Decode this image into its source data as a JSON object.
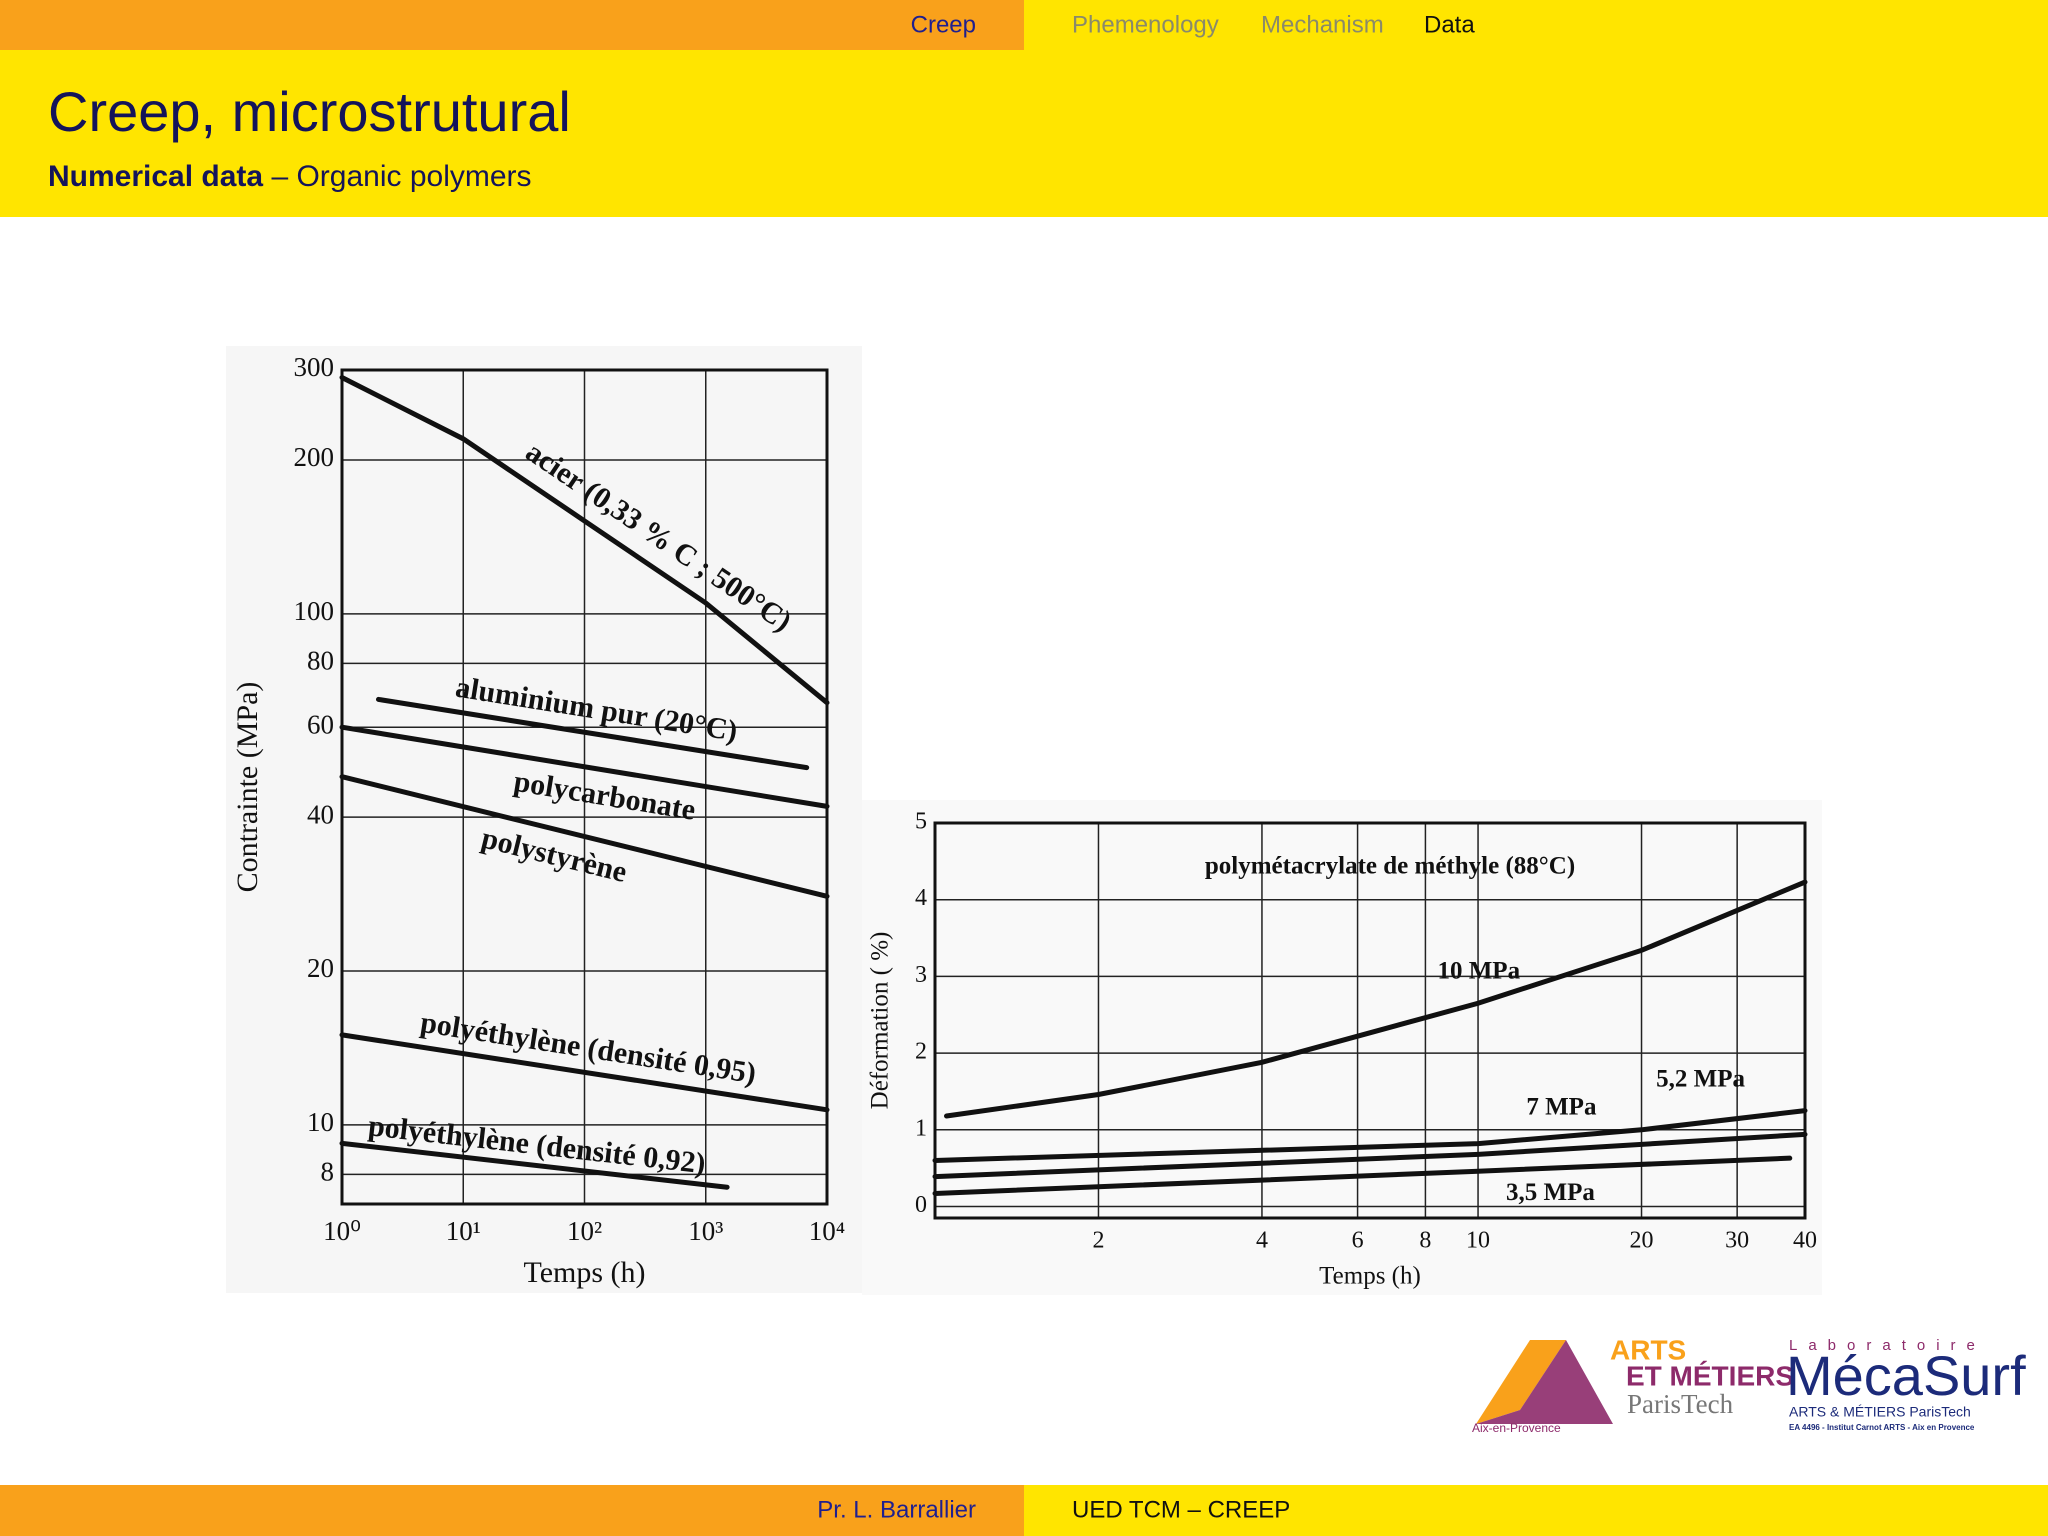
{
  "header": {
    "section": "Creep",
    "nav": [
      "Phemenology",
      "Mechanism",
      "Data"
    ],
    "title": "Creep, microstrutural",
    "subtitle_bold": "Numerical data",
    "subtitle": "– Organic polymers"
  },
  "chart_data": [
    {
      "type": "line",
      "xlabel": "Temps (h)",
      "ylabel": "Contrainte (MPa)",
      "xscale": "log",
      "yscale": "log",
      "grid": true,
      "xlim": [
        1,
        10000
      ],
      "ylim": [
        7,
        300
      ],
      "xticks": [
        {
          "value": 1,
          "label": "10⁰"
        },
        {
          "value": 10,
          "label": "10¹"
        },
        {
          "value": 100,
          "label": "10²"
        },
        {
          "value": 1000,
          "label": "10³"
        },
        {
          "value": 10000,
          "label": "10⁴"
        }
      ],
      "yticks": [
        8,
        10,
        20,
        40,
        60,
        80,
        100,
        200,
        300
      ],
      "series": [
        {
          "name": "acier (0,33 % C ; 500°C)",
          "color": "#111111",
          "x": [
            1,
            10,
            100,
            1000,
            10000
          ],
          "values": [
            290,
            220,
            152,
            105,
            67
          ]
        },
        {
          "name": "aluminium pur (20°C)",
          "color": "#111111",
          "x": [
            2,
            6800
          ],
          "values": [
            68,
            50
          ]
        },
        {
          "name": "polycarbonate",
          "color": "#111111",
          "x": [
            1,
            10000
          ],
          "values": [
            60,
            42
          ]
        },
        {
          "name": "polystyrène",
          "color": "#111111",
          "x": [
            1,
            10000
          ],
          "values": [
            48,
            28
          ]
        },
        {
          "name": "polyéthylène (densité 0,95)",
          "color": "#111111",
          "x": [
            1,
            10000
          ],
          "values": [
            15,
            10.7
          ]
        },
        {
          "name": "polyéthylène (densité 0,92)",
          "color": "#111111",
          "x": [
            1,
            1500
          ],
          "values": [
            9.2,
            7.55
          ]
        }
      ]
    },
    {
      "type": "line",
      "annotation": "polymétacrylate de méthyle (88°C)",
      "xlabel": "Temps (h)",
      "ylabel": "Déformation ( %)",
      "xscale": "log",
      "grid": true,
      "xlim": [
        1,
        40
      ],
      "ylim": [
        -0.15,
        5
      ],
      "xticks": [
        2,
        4,
        6,
        8,
        10,
        20,
        30,
        40
      ],
      "yticks": [
        0,
        1,
        2,
        3,
        4,
        5
      ],
      "series": [
        {
          "name": "10 MPa",
          "color": "#111111",
          "x": [
            1.05,
            2,
            4,
            10,
            20,
            40
          ],
          "values": [
            1.18,
            1.46,
            1.88,
            2.65,
            3.34,
            4.23
          ]
        },
        {
          "name": "7 MPa",
          "color": "#111111",
          "x": [
            1,
            10,
            20,
            40
          ],
          "values": [
            0.6,
            0.82,
            1.0,
            1.25
          ]
        },
        {
          "name": "5,2 MPa",
          "color": "#111111",
          "x": [
            1,
            10,
            40
          ],
          "values": [
            0.39,
            0.68,
            0.94
          ]
        },
        {
          "name": "3,5 MPa",
          "color": "#111111",
          "x": [
            1,
            10,
            37.5
          ],
          "values": [
            0.17,
            0.46,
            0.63
          ]
        }
      ]
    }
  ],
  "logos": {
    "arts": "ARTS",
    "metiers": "ET MÉTIERS",
    "paristech": "ParisTech",
    "city": "Aix-en-Provence",
    "lab": "Laboratoire",
    "mecasurf": "MécaSurf",
    "lab_sub": "ARTS & MÉTIERS ParisTech",
    "lab_ea": "EA 4496 - Institut Carnot ARTS - Aix en Provence"
  },
  "footer": {
    "author": "Pr. L. Barrallier",
    "course": "UED TCM – CREEP"
  }
}
